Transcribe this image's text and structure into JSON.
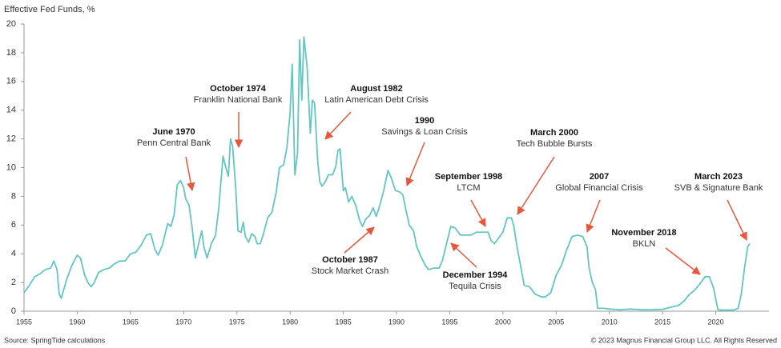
{
  "chart_data": {
    "type": "line",
    "title": "Effective Fed Funds, %",
    "source": "Source: SpringTide calculations",
    "copyright": "© 2023 Magnus Financial Group LLC. All Rights Reserved",
    "color": "#62c6c3",
    "annotation_color": "#e8573b",
    "grid": false,
    "xlim": [
      1955,
      2025
    ],
    "xticks": [
      1955,
      1960,
      1965,
      1970,
      1975,
      1980,
      1985,
      1990,
      1995,
      2000,
      2005,
      2010,
      2015,
      2020
    ],
    "ylim": [
      0,
      20
    ],
    "yticks": [
      0,
      2,
      4,
      6,
      8,
      10,
      12,
      14,
      16,
      18,
      20
    ],
    "annotations": [
      {
        "title": "June 1970",
        "text": "Penn Central Bank"
      },
      {
        "title": "October 1974",
        "text": "Franklin National Bank"
      },
      {
        "title": "August 1982",
        "text": "Latin American Debt Crisis"
      },
      {
        "title": "1990",
        "text": "Savings & Loan Crisis"
      },
      {
        "title": "September 1998",
        "text": "LTCM"
      },
      {
        "title": "March 2000",
        "text": "Tech Bubble Bursts"
      },
      {
        "title": "2007",
        "text": "Global Financial Crisis"
      },
      {
        "title": "March 2023",
        "text": "SVB & Signature Bank"
      },
      {
        "title": "November 2018",
        "text": "BKLN"
      },
      {
        "title": "October 1987",
        "text": "Stock Market Crash"
      },
      {
        "title": "December 1994",
        "text": "Tequila Crisis"
      }
    ],
    "x": [
      1955,
      1955.5,
      1956,
      1956.5,
      1957,
      1957.5,
      1957.8,
      1958.1,
      1958.3,
      1958.5,
      1959,
      1959.5,
      1960,
      1960.3,
      1960.7,
      1961,
      1961.3,
      1961.6,
      1962,
      1962.5,
      1963,
      1963.5,
      1964,
      1964.5,
      1965,
      1965.5,
      1966,
      1966.5,
      1966.9,
      1967.3,
      1967.6,
      1968,
      1968.5,
      1968.8,
      1969.1,
      1969.4,
      1969.7,
      1970,
      1970.2,
      1970.5,
      1970.8,
      1971,
      1971.1,
      1971.5,
      1971.7,
      1971.9,
      1972.2,
      1972.6,
      1973,
      1973.3,
      1973.7,
      1974,
      1974.2,
      1974.4,
      1974.6,
      1974.9,
      1975.1,
      1975.4,
      1975.6,
      1975.8,
      1976.1,
      1976.4,
      1976.7,
      1976.9,
      1977.2,
      1977.5,
      1977.9,
      1978.3,
      1978.7,
      1979,
      1979.4,
      1979.7,
      1980,
      1980.2,
      1980.45,
      1980.7,
      1980.9,
      1981.1,
      1981.3,
      1981.6,
      1981.9,
      1982.1,
      1982.3,
      1982.6,
      1982.8,
      1983,
      1983.3,
      1983.6,
      1984,
      1984.3,
      1984.5,
      1984.7,
      1985,
      1985.2,
      1985.5,
      1985.8,
      1986.2,
      1986.5,
      1986.8,
      1987.1,
      1987.5,
      1987.8,
      1988.1,
      1988.4,
      1988.8,
      1989.2,
      1989.5,
      1989.9,
      1990.3,
      1990.6,
      1990.9,
      1991.2,
      1991.6,
      1991.9,
      1992.3,
      1992.7,
      1993,
      1993.5,
      1994,
      1994.3,
      1994.7,
      1995.1,
      1995.5,
      1996,
      1996.5,
      1997,
      1997.5,
      1998,
      1998.6,
      1998.9,
      1999.2,
      1999.6,
      2000,
      2000.4,
      2000.8,
      2001,
      2001.3,
      2001.7,
      2002,
      2002.5,
      2003,
      2003.6,
      2004,
      2004.5,
      2005,
      2005.5,
      2006,
      2006.5,
      2007,
      2007.5,
      2007.9,
      2008.1,
      2008.4,
      2008.7,
      2008.9,
      2009.5,
      2010,
      2011,
      2012,
      2013,
      2014,
      2015,
      2015.9,
      2016.5,
      2017,
      2017.5,
      2018,
      2018.5,
      2019,
      2019.4,
      2019.8,
      2020.2,
      2020.5,
      2021,
      2021.7,
      2022.1,
      2022.4,
      2022.7,
      2023,
      2023.2
    ],
    "values": [
      1.3,
      1.8,
      2.4,
      2.6,
      2.9,
      3.0,
      3.5,
      2.9,
      1.2,
      0.9,
      2.2,
      3.2,
      3.9,
      3.7,
      2.5,
      2.0,
      1.7,
      2.0,
      2.7,
      2.9,
      3.0,
      3.3,
      3.5,
      3.5,
      4.0,
      4.1,
      4.6,
      5.3,
      5.4,
      4.3,
      3.9,
      4.6,
      6.1,
      5.9,
      6.7,
      8.8,
      9.1,
      8.6,
      7.8,
      7.4,
      5.8,
      4.4,
      3.7,
      5.0,
      5.6,
      4.5,
      3.7,
      4.7,
      5.3,
      7.2,
      10.8,
      9.9,
      9.4,
      12.0,
      11.5,
      8.5,
      5.6,
      5.5,
      6.2,
      5.2,
      4.8,
      5.4,
      5.2,
      4.7,
      4.7,
      5.4,
      6.5,
      6.9,
      8.3,
      10.0,
      10.2,
      11.4,
      13.8,
      17.2,
      9.5,
      11.0,
      18.9,
      14.7,
      19.1,
      17.0,
      12.4,
      14.7,
      14.5,
      10.4,
      9.0,
      8.7,
      9.0,
      9.5,
      9.5,
      10.1,
      11.2,
      11.3,
      8.4,
      8.6,
      7.6,
      8.0,
      7.3,
      6.4,
      5.9,
      6.4,
      6.7,
      7.2,
      6.6,
      7.3,
      8.4,
      9.8,
      9.3,
      8.4,
      8.3,
      8.1,
      7.0,
      6.0,
      5.6,
      4.5,
      3.8,
      3.2,
      2.9,
      3.0,
      3.0,
      3.5,
      4.7,
      5.9,
      5.8,
      5.3,
      5.3,
      5.3,
      5.5,
      5.5,
      5.5,
      4.9,
      4.7,
      5.1,
      5.5,
      6.5,
      6.5,
      6.0,
      4.6,
      3.0,
      1.8,
      1.7,
      1.2,
      1.0,
      1.0,
      1.3,
      2.5,
      3.2,
      4.3,
      5.2,
      5.3,
      5.2,
      4.5,
      3.0,
      2.0,
      1.5,
      0.2,
      0.2,
      0.15,
      0.1,
      0.15,
      0.1,
      0.1,
      0.13,
      0.3,
      0.4,
      0.7,
      1.15,
      1.45,
      1.9,
      2.4,
      2.4,
      1.6,
      0.1,
      0.08,
      0.08,
      0.08,
      0.2,
      1.2,
      3.0,
      4.5,
      4.7
    ]
  }
}
